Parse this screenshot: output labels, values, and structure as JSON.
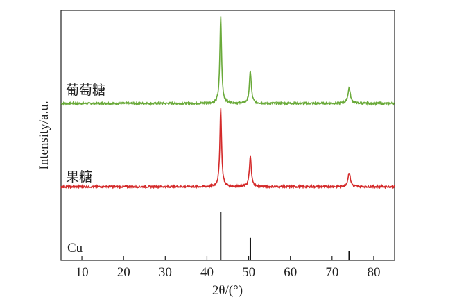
{
  "chart_data": {
    "type": "line",
    "xlabel": "2θ/(°)",
    "ylabel": "Intensity/a.u.",
    "xlim": [
      5,
      85
    ],
    "x_ticks": [
      10,
      20,
      30,
      40,
      50,
      60,
      70,
      80
    ],
    "y_ticks_shown": false,
    "grid": false,
    "legend": "none",
    "series": [
      {
        "name": "葡萄糖",
        "color": "#6aaa3a",
        "baseline": 0.02,
        "peaks": [
          {
            "x": 43.3,
            "height": 1.0,
            "width": 0.25
          },
          {
            "x": 50.4,
            "height": 0.37,
            "width": 0.28
          },
          {
            "x": 74.1,
            "height": 0.18,
            "width": 0.35
          }
        ]
      },
      {
        "name": "果糖",
        "color": "#d42a2a",
        "baseline": 0.02,
        "peaks": [
          {
            "x": 43.3,
            "height": 0.94,
            "width": 0.25
          },
          {
            "x": 50.4,
            "height": 0.36,
            "width": 0.28
          },
          {
            "x": 74.1,
            "height": 0.17,
            "width": 0.35
          }
        ]
      },
      {
        "name": "Cu",
        "color": "#111111",
        "type": "stick",
        "sticks": [
          {
            "x": 43.3,
            "intensity": 1.0
          },
          {
            "x": 50.4,
            "intensity": 0.46
          },
          {
            "x": 74.1,
            "intensity": 0.2
          }
        ]
      }
    ]
  }
}
